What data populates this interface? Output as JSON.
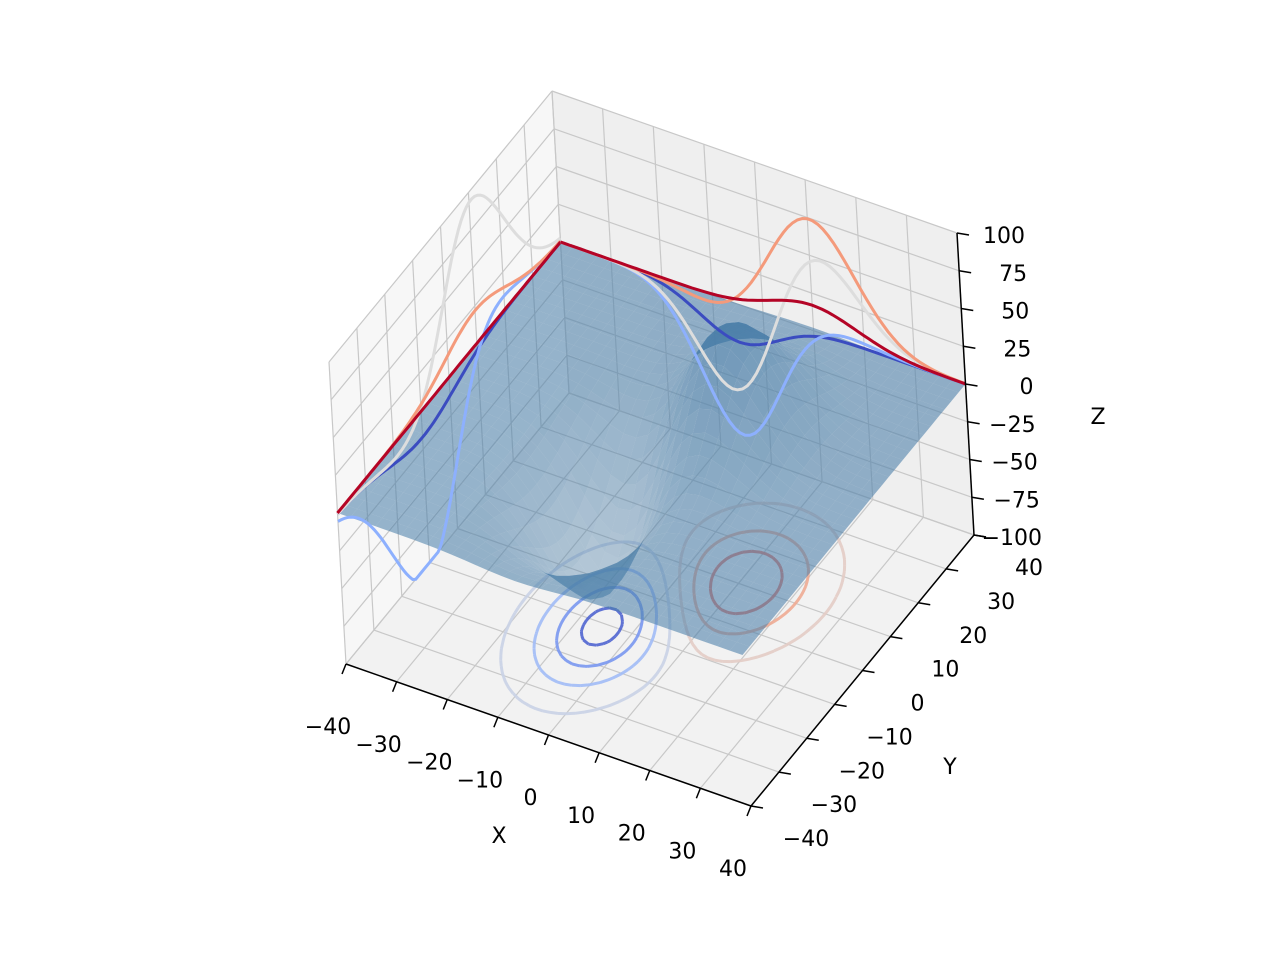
{
  "chart_data": {
    "type": "surface3d",
    "xlabel": "X",
    "ylabel": "Y",
    "zlabel": "Z",
    "xlim": [
      -40,
      40
    ],
    "ylim": [
      -40,
      40
    ],
    "zlim": [
      -100,
      100
    ],
    "x_ticks": [
      "−40",
      "−30",
      "−20",
      "−10",
      "0",
      "10",
      "20",
      "30",
      "40"
    ],
    "y_ticks": [
      "−40",
      "−30",
      "−20",
      "−10",
      "0",
      "10",
      "20",
      "30",
      "40"
    ],
    "z_ticks": [
      "−100",
      "−75",
      "−50",
      "−25",
      "0",
      "25",
      "50",
      "75",
      "100"
    ],
    "surface": {
      "color": "#4a7ea8",
      "peak": {
        "x": 10,
        "y": 10,
        "z": 70
      },
      "trough": {
        "x": -5,
        "y": -10,
        "z": -80
      }
    },
    "projections": {
      "colormap": "coolwarm",
      "plane_z": -100,
      "plane_x": -40,
      "plane_y": 40
    },
    "grid": true
  }
}
